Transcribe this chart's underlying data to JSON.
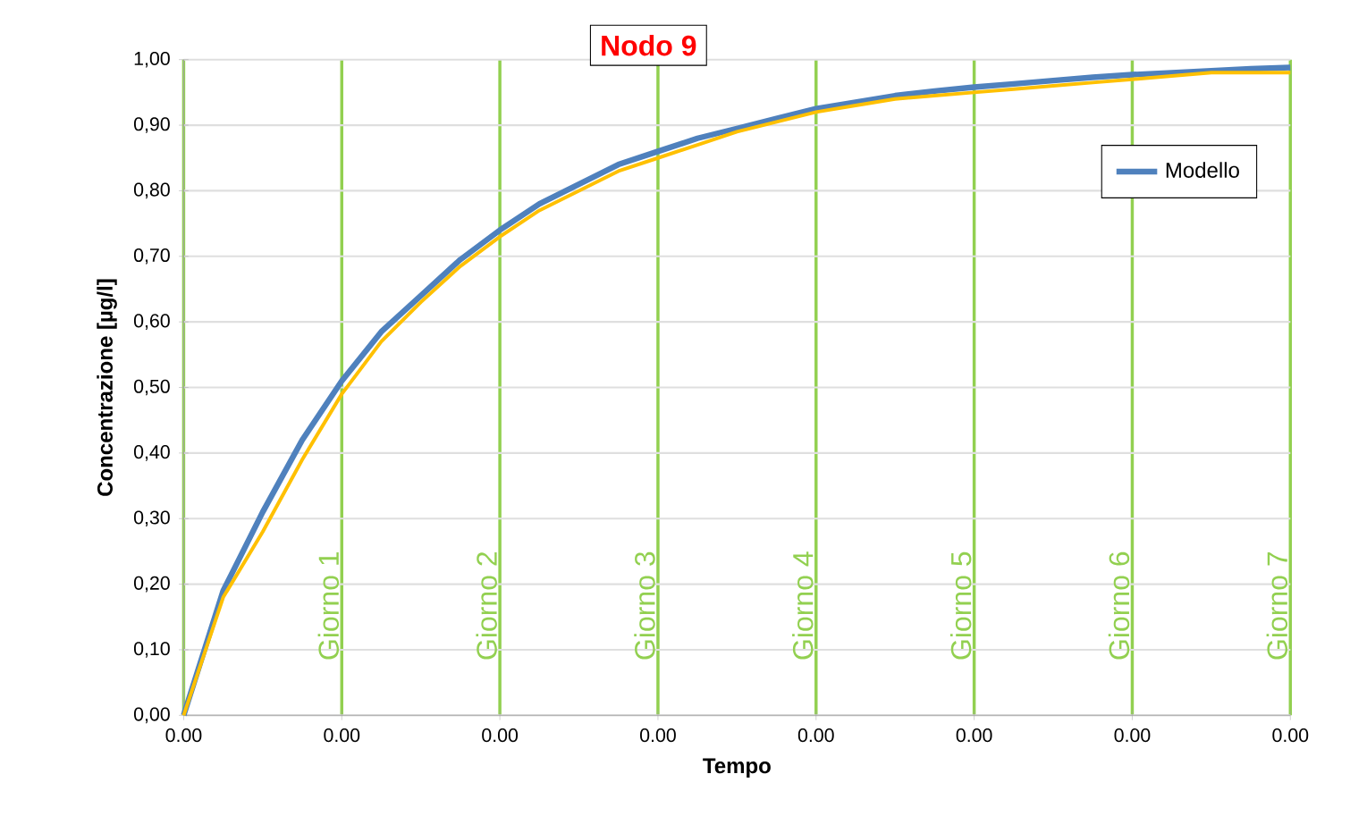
{
  "chart_data": {
    "type": "line",
    "title": "Nodo 9",
    "xlabel": "Tempo",
    "ylabel": "Concentrazione [µg/l]",
    "categories": [
      "0.00",
      null,
      null,
      null,
      "0.00",
      null,
      null,
      null,
      "0.00",
      null,
      null,
      null,
      "0.00",
      null,
      null,
      null,
      "0.00",
      null,
      null,
      null,
      "0.00",
      null,
      null,
      null,
      "0.00",
      null,
      null,
      null,
      "0.00"
    ],
    "ylim": [
      0,
      1
    ],
    "yticks": [
      {
        "value": 0,
        "label": "0,00"
      },
      {
        "value": 0.1,
        "label": "0,10"
      },
      {
        "value": 0.2,
        "label": "0,20"
      },
      {
        "value": 0.3,
        "label": "0,30"
      },
      {
        "value": 0.4,
        "label": "0,40"
      },
      {
        "value": 0.5,
        "label": "0,50"
      },
      {
        "value": 0.6,
        "label": "0,60"
      },
      {
        "value": 0.7,
        "label": "0,70"
      },
      {
        "value": 0.8,
        "label": "0,80"
      },
      {
        "value": 0.9,
        "label": "0,90"
      },
      {
        "value": 1,
        "label": "1,00"
      }
    ],
    "grid": true,
    "legend": "top right",
    "marker": "none",
    "line_style": "solid",
    "series": [
      {
        "name": "Modello",
        "color": "#4f81bd",
        "values": [
          0,
          0.19,
          0.31,
          0.42,
          0.51,
          0.585,
          0.64,
          0.695,
          0.74,
          0.78,
          0.81,
          0.84,
          0.86,
          0.88,
          0.895,
          0.91,
          0.925,
          0.935,
          0.945,
          0.952,
          0.958,
          0.963,
          0.968,
          0.973,
          0.977,
          0.98,
          0.983,
          0.986,
          0.988
        ]
      },
      {
        "color": "#ffc000",
        "values": [
          0,
          0.18,
          0.28,
          0.39,
          0.49,
          0.57,
          0.63,
          0.685,
          0.73,
          0.77,
          0.8,
          0.83,
          0.85,
          0.87,
          0.89,
          0.905,
          0.92,
          0.93,
          0.94,
          0.945,
          0.95,
          0.955,
          0.96,
          0.965,
          0.97,
          0.975,
          0.98,
          0.98,
          0.98
        ]
      }
    ],
    "annotations": [
      "Giorno 1",
      "Giorno 2",
      "Giorno 3",
      "Giorno 4",
      "Giorno 5",
      "Giorno 6",
      "Giorno 7"
    ]
  }
}
